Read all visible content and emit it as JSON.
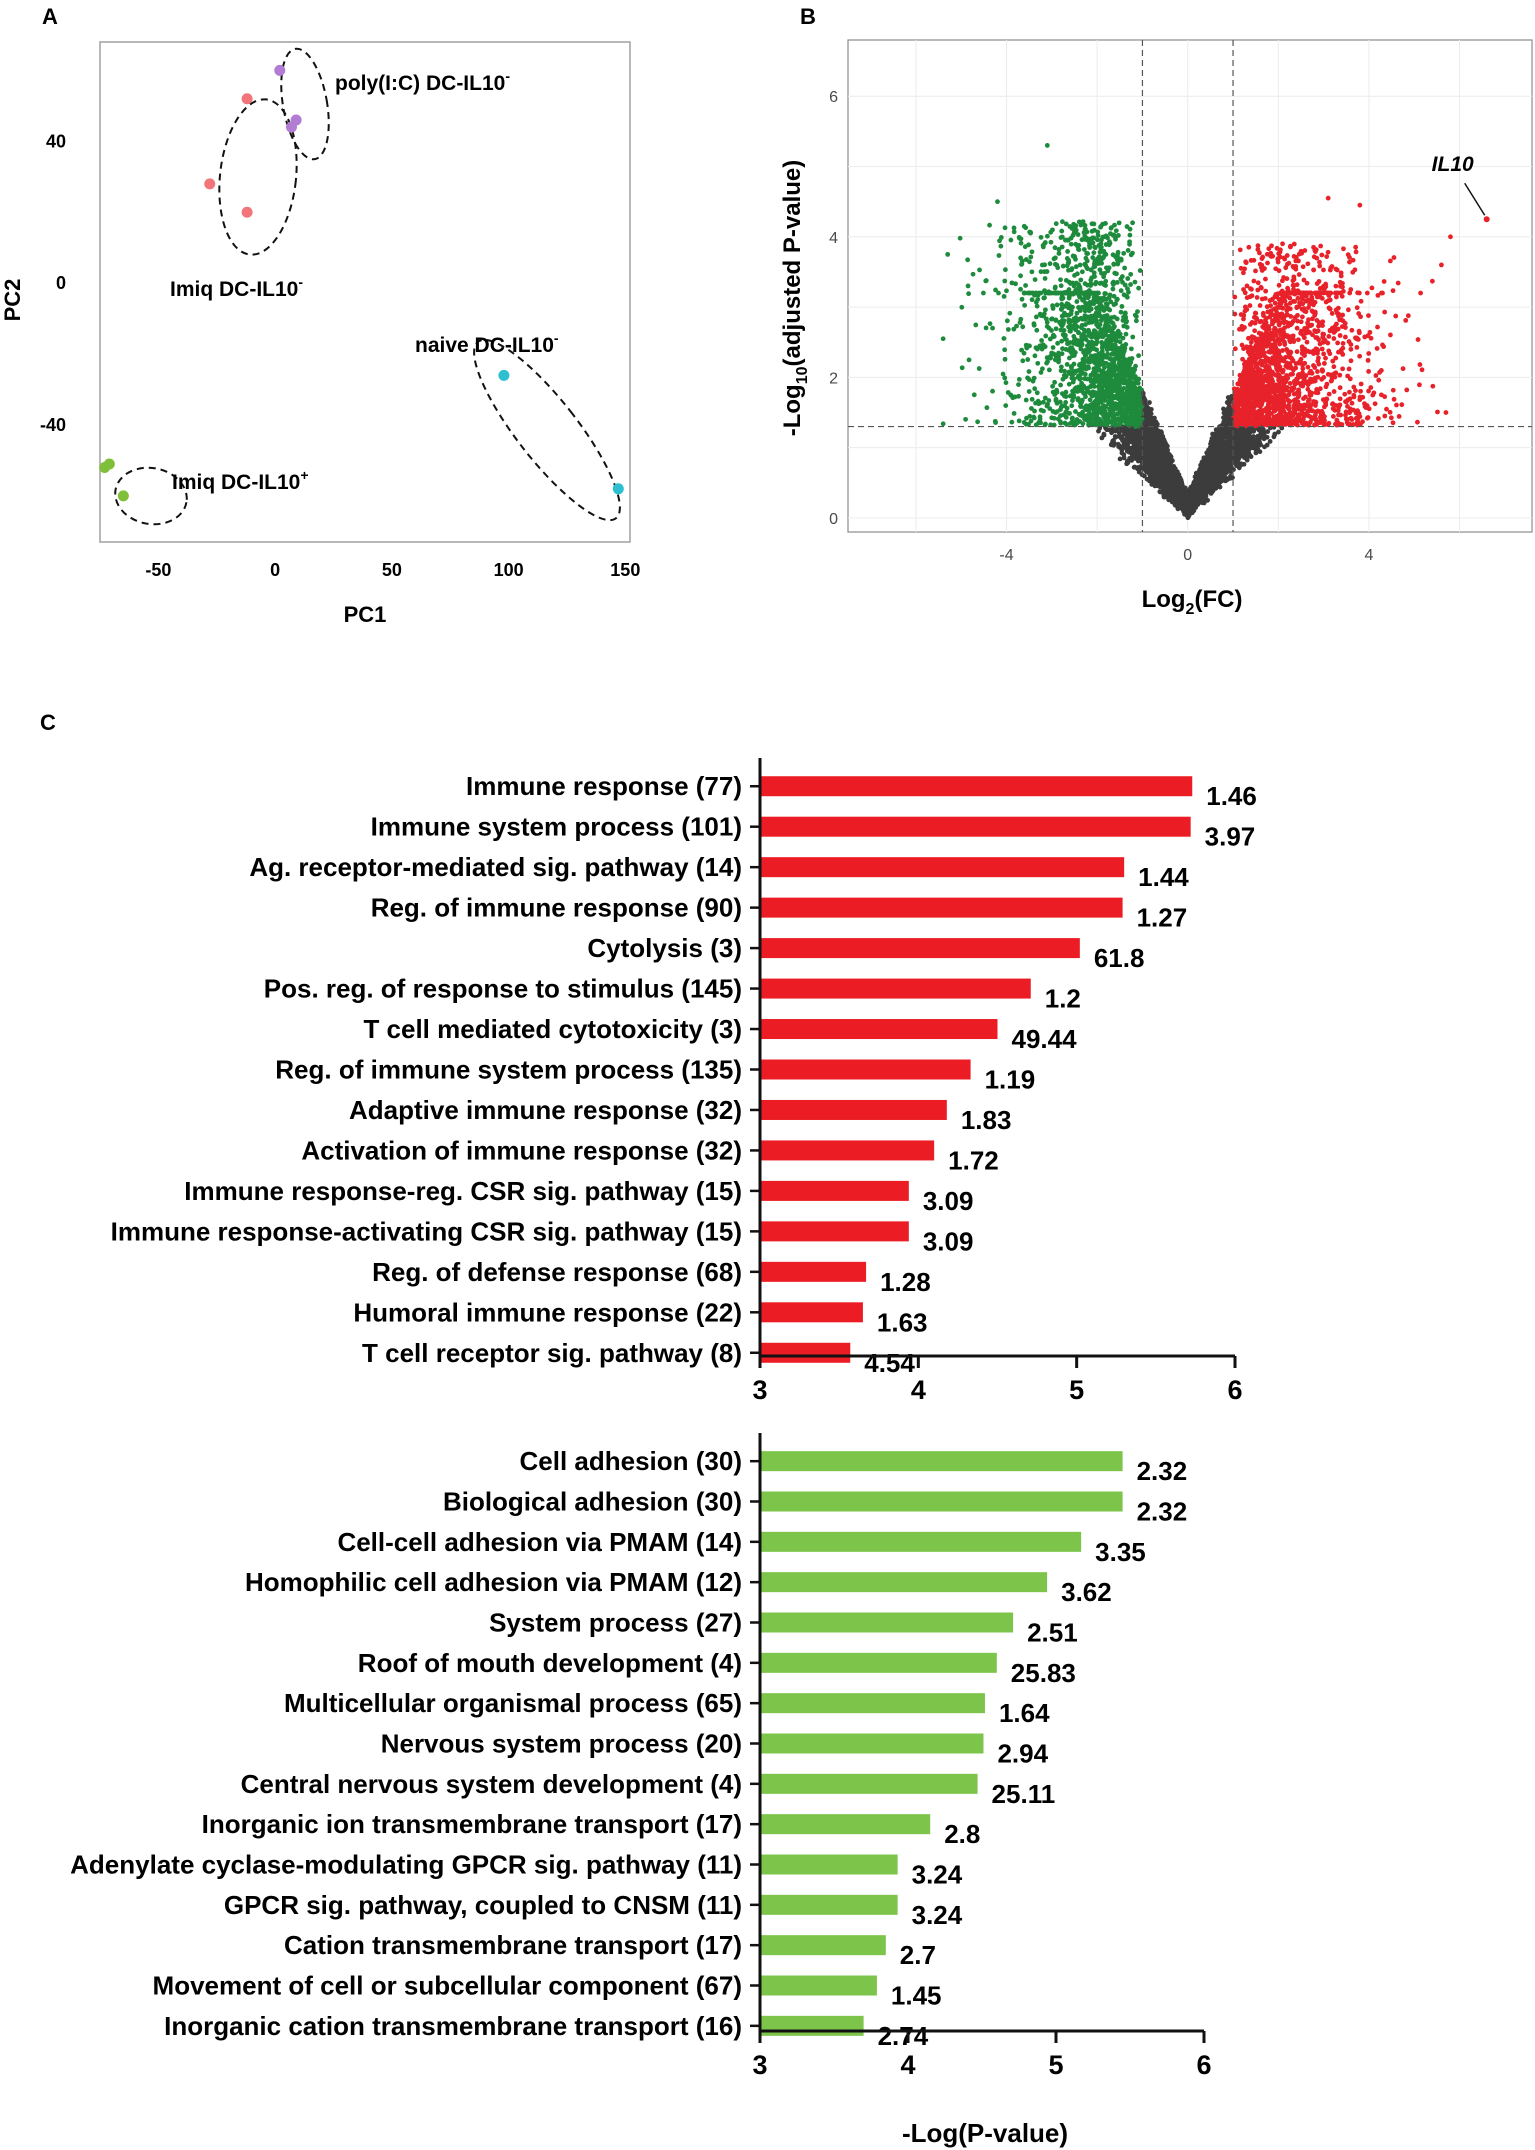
{
  "panels": {
    "A": "A",
    "B": "B",
    "C": "C"
  },
  "chart_data": [
    {
      "id": "pca",
      "type": "scatter",
      "xlabel": "PC1",
      "ylabel": "PC2",
      "xlim": [
        -75,
        152
      ],
      "ylim": [
        -73,
        68
      ],
      "xticks": [
        -50,
        0,
        50,
        100,
        150
      ],
      "yticks": [
        40,
        0,
        -40
      ],
      "tick_labels_x": [
        "-50",
        "0",
        "50",
        "100",
        "150"
      ],
      "tick_labels_y": [
        "40",
        "0",
        "-40"
      ],
      "groups": [
        {
          "name": "poly(I:C) DC-IL10",
          "sup": "-",
          "color": "#b27bd4",
          "points": [
            [
              2,
              60
            ],
            [
              9,
              46
            ],
            [
              7,
              44
            ]
          ]
        },
        {
          "name": "Imiq DC-IL10",
          "sup": "-",
          "color": "#f2757a",
          "points": [
            [
              -12,
              52
            ],
            [
              -28,
              28
            ],
            [
              -12,
              20
            ]
          ]
        },
        {
          "name": "naive DC-IL10",
          "sup": "-",
          "color": "#2bbfcf",
          "points": [
            [
              98,
              -26
            ],
            [
              147,
              -58
            ]
          ]
        },
        {
          "name": "Imiq DC-IL10",
          "sup": "+",
          "color": "#7fbf3a",
          "points": [
            [
              -73,
              -52
            ],
            [
              -71,
              -51
            ],
            [
              -65,
              -60
            ]
          ]
        }
      ]
    },
    {
      "id": "volcano",
      "type": "scatter",
      "xlabel_main": "Log",
      "xlabel_sub": "2",
      "xlabel_tail": "(FC)",
      "ylabel_main": "-Log",
      "ylabel_sub": "10",
      "ylabel_tail": "(adjusted P-value)",
      "xlim": [
        -7.5,
        7.6
      ],
      "ylim": [
        -0.2,
        6.8
      ],
      "xticks": [
        -4,
        0,
        4
      ],
      "yticks": [
        0,
        2,
        4,
        6
      ],
      "tick_labels_x": [
        "-4",
        "0",
        "4"
      ],
      "tick_labels_y": [
        "0",
        "2",
        "4",
        "6"
      ],
      "fc_threshold": 1,
      "p_threshold": 1.3,
      "colors": {
        "down": "#1e8b3c",
        "up": "#e8222a",
        "ns": "#3c3c3c"
      },
      "highlight": {
        "label": "IL10",
        "x": 6.6,
        "y": 4.25
      }
    },
    {
      "id": "go-up",
      "type": "bar",
      "orientation": "horizontal",
      "color": "#ec1c24",
      "xlim": [
        3,
        6
      ],
      "xticks": [
        3,
        4,
        5,
        6
      ],
      "tick_labels": [
        "3",
        "4",
        "5",
        "6"
      ],
      "categories": [
        "Immune response (77)",
        "Immune system process (101)",
        "Ag. receptor-mediated sig. pathway (14)",
        "Reg. of immune response (90)",
        "Cytolysis (3)",
        "Pos. reg. of response to stimulus (145)",
        "T cell mediated cytotoxicity (3)",
        "Reg. of immune system process (135)",
        "Adaptive immune response (32)",
        "Activation of immune response (32)",
        "Immune response-reg. CSR sig. pathway (15)",
        "Immune response-activating CSR sig. pathway (15)",
        "Reg. of defense response (68)",
        "Humoral immune response (22)",
        "T cell receptor sig. pathway (8)"
      ],
      "values": [
        5.73,
        5.72,
        5.3,
        5.29,
        5.02,
        4.71,
        4.5,
        4.33,
        4.18,
        4.1,
        3.94,
        3.94,
        3.67,
        3.65,
        3.57
      ],
      "value_labels": [
        "1.46",
        "3.97",
        "1.44",
        "1.27",
        "61.8",
        "1.2",
        "49.44",
        "1.19",
        "1.83",
        "1.72",
        "3.09",
        "3.09",
        "1.28",
        "1.63",
        "4.54"
      ]
    },
    {
      "id": "go-down",
      "type": "bar",
      "orientation": "horizontal",
      "color": "#7dc44a",
      "xlim": [
        3,
        6
      ],
      "xticks": [
        3,
        4,
        5,
        6
      ],
      "tick_labels": [
        "3",
        "4",
        "5",
        "6"
      ],
      "xlabel": "-Log(P-value)",
      "categories": [
        "Cell adhesion (30)",
        "Biological adhesion (30)",
        "Cell-cell adhesion via PMAM (14)",
        "Homophilic cell adhesion via PMAM (12)",
        "System process (27)",
        "Roof of mouth development (4)",
        "Multicellular organismal process (65)",
        "Nervous system process (20)",
        "Central nervous system development (4)",
        "Inorganic ion transmembrane transport (17)",
        "Adenylate cyclase-modulating GPCR sig. pathway (11)",
        "GPCR sig. pathway, coupled to CNSM (11)",
        "Cation transmembrane transport (17)",
        "Movement of cell or subcellular component (67)",
        "Inorganic cation transmembrane transport (16)"
      ],
      "values": [
        5.45,
        5.45,
        5.17,
        4.94,
        4.71,
        4.6,
        4.52,
        4.51,
        4.47,
        4.15,
        3.93,
        3.93,
        3.85,
        3.79,
        3.7
      ],
      "value_labels": [
        "2.32",
        "2.32",
        "3.35",
        "3.62",
        "2.51",
        "25.83",
        "1.64",
        "2.94",
        "25.11",
        "2.8",
        "3.24",
        "3.24",
        "2.7",
        "1.45",
        "2.74"
      ]
    }
  ]
}
